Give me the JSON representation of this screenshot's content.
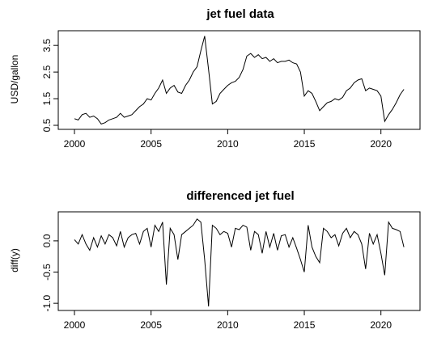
{
  "chart_data": [
    {
      "type": "line",
      "title": "jet fuel data",
      "xlabel": "",
      "ylabel": "USD/gallon",
      "xlim": [
        2000,
        2021.6
      ],
      "ylim": [
        0.5,
        3.9
      ],
      "xticks": [
        "2000",
        "2005",
        "2010",
        "2015",
        "2020"
      ],
      "yticks": [
        "0.5",
        "1.5",
        "2.5",
        "3.5"
      ],
      "grid": false,
      "x": [
        2000.0,
        2000.25,
        2000.5,
        2000.75,
        2001.0,
        2001.25,
        2001.5,
        2001.75,
        2002.0,
        2002.25,
        2002.5,
        2002.75,
        2003.0,
        2003.25,
        2003.5,
        2003.75,
        2004.0,
        2004.25,
        2004.5,
        2004.75,
        2005.0,
        2005.25,
        2005.5,
        2005.75,
        2006.0,
        2006.25,
        2006.5,
        2006.75,
        2007.0,
        2007.25,
        2007.5,
        2007.75,
        2008.0,
        2008.25,
        2008.5,
        2008.75,
        2009.0,
        2009.25,
        2009.5,
        2009.75,
        2010.0,
        2010.25,
        2010.5,
        2010.75,
        2011.0,
        2011.25,
        2011.5,
        2011.75,
        2012.0,
        2012.25,
        2012.5,
        2012.75,
        2013.0,
        2013.25,
        2013.5,
        2013.75,
        2014.0,
        2014.25,
        2014.5,
        2014.75,
        2015.0,
        2015.25,
        2015.5,
        2015.75,
        2016.0,
        2016.25,
        2016.5,
        2016.75,
        2017.0,
        2017.25,
        2017.5,
        2017.75,
        2018.0,
        2018.25,
        2018.5,
        2018.75,
        2019.0,
        2019.25,
        2019.5,
        2019.75,
        2020.0,
        2020.25,
        2020.5,
        2020.75,
        2021.0,
        2021.25,
        2021.5
      ],
      "y": [
        0.75,
        0.7,
        0.9,
        0.95,
        0.8,
        0.85,
        0.75,
        0.55,
        0.6,
        0.7,
        0.75,
        0.8,
        0.95,
        0.8,
        0.85,
        0.9,
        1.05,
        1.2,
        1.3,
        1.5,
        1.45,
        1.7,
        1.9,
        2.2,
        1.7,
        1.9,
        2.0,
        1.75,
        1.7,
        2.0,
        2.2,
        2.5,
        2.7,
        3.3,
        3.85,
        2.6,
        1.3,
        1.4,
        1.7,
        1.85,
        2.0,
        2.1,
        2.15,
        2.3,
        2.6,
        3.1,
        3.2,
        3.05,
        3.15,
        3.0,
        3.05,
        2.9,
        3.0,
        2.85,
        2.9,
        2.9,
        2.95,
        2.85,
        2.8,
        2.5,
        1.6,
        1.8,
        1.7,
        1.4,
        1.05,
        1.2,
        1.35,
        1.4,
        1.5,
        1.45,
        1.55,
        1.8,
        1.9,
        2.1,
        2.2,
        2.25,
        1.8,
        1.9,
        1.85,
        1.8,
        1.6,
        0.65,
        0.9,
        1.1,
        1.35,
        1.65,
        1.85
      ]
    },
    {
      "type": "line",
      "title": "differenced jet fuel",
      "xlabel": "",
      "ylabel": "diff(y)",
      "xlim": [
        2000,
        2021.6
      ],
      "ylim": [
        -1.05,
        0.4
      ],
      "xticks": [
        "2000",
        "2005",
        "2010",
        "2015",
        "2020"
      ],
      "yticks": [
        "-1.0",
        "-0.5",
        "0.0"
      ],
      "grid": false,
      "x": [
        2000.0,
        2000.25,
        2000.5,
        2000.75,
        2001.0,
        2001.25,
        2001.5,
        2001.75,
        2002.0,
        2002.25,
        2002.5,
        2002.75,
        2003.0,
        2003.25,
        2003.5,
        2003.75,
        2004.0,
        2004.25,
        2004.5,
        2004.75,
        2005.0,
        2005.25,
        2005.5,
        2005.75,
        2006.0,
        2006.25,
        2006.5,
        2006.75,
        2007.0,
        2007.25,
        2007.5,
        2007.75,
        2008.0,
        2008.25,
        2008.5,
        2008.75,
        2009.0,
        2009.25,
        2009.5,
        2009.75,
        2010.0,
        2010.25,
        2010.5,
        2010.75,
        2011.0,
        2011.25,
        2011.5,
        2011.75,
        2012.0,
        2012.25,
        2012.5,
        2012.75,
        2013.0,
        2013.25,
        2013.5,
        2013.75,
        2014.0,
        2014.25,
        2014.5,
        2014.75,
        2015.0,
        2015.25,
        2015.5,
        2015.75,
        2016.0,
        2016.25,
        2016.5,
        2016.75,
        2017.0,
        2017.25,
        2017.5,
        2017.75,
        2018.0,
        2018.25,
        2018.5,
        2018.75,
        2019.0,
        2019.25,
        2019.5,
        2019.75,
        2020.0,
        2020.25,
        2020.5,
        2020.75,
        2021.0,
        2021.25,
        2021.5
      ],
      "y": [
        0.02,
        -0.05,
        0.1,
        -0.05,
        -0.15,
        0.05,
        -0.1,
        0.08,
        -0.05,
        0.1,
        0.05,
        -0.08,
        0.15,
        -0.1,
        0.05,
        0.1,
        0.12,
        -0.05,
        0.15,
        0.2,
        -0.1,
        0.25,
        0.15,
        0.3,
        -0.7,
        0.2,
        0.1,
        -0.3,
        0.1,
        0.15,
        0.2,
        0.25,
        0.35,
        0.3,
        -0.3,
        -1.05,
        0.25,
        0.2,
        0.1,
        0.15,
        0.12,
        -0.1,
        0.2,
        0.18,
        0.25,
        0.22,
        -0.15,
        0.15,
        0.1,
        -0.2,
        0.15,
        -0.1,
        0.12,
        -0.15,
        0.08,
        0.1,
        -0.1,
        0.05,
        -0.12,
        -0.3,
        -0.5,
        0.25,
        -0.1,
        -0.25,
        -0.35,
        0.2,
        0.15,
        0.05,
        0.1,
        -0.08,
        0.12,
        0.2,
        0.05,
        0.15,
        0.1,
        -0.05,
        -0.45,
        0.12,
        -0.05,
        0.1,
        -0.2,
        -0.55,
        0.3,
        0.2,
        0.18,
        0.15,
        -0.1
      ]
    }
  ]
}
